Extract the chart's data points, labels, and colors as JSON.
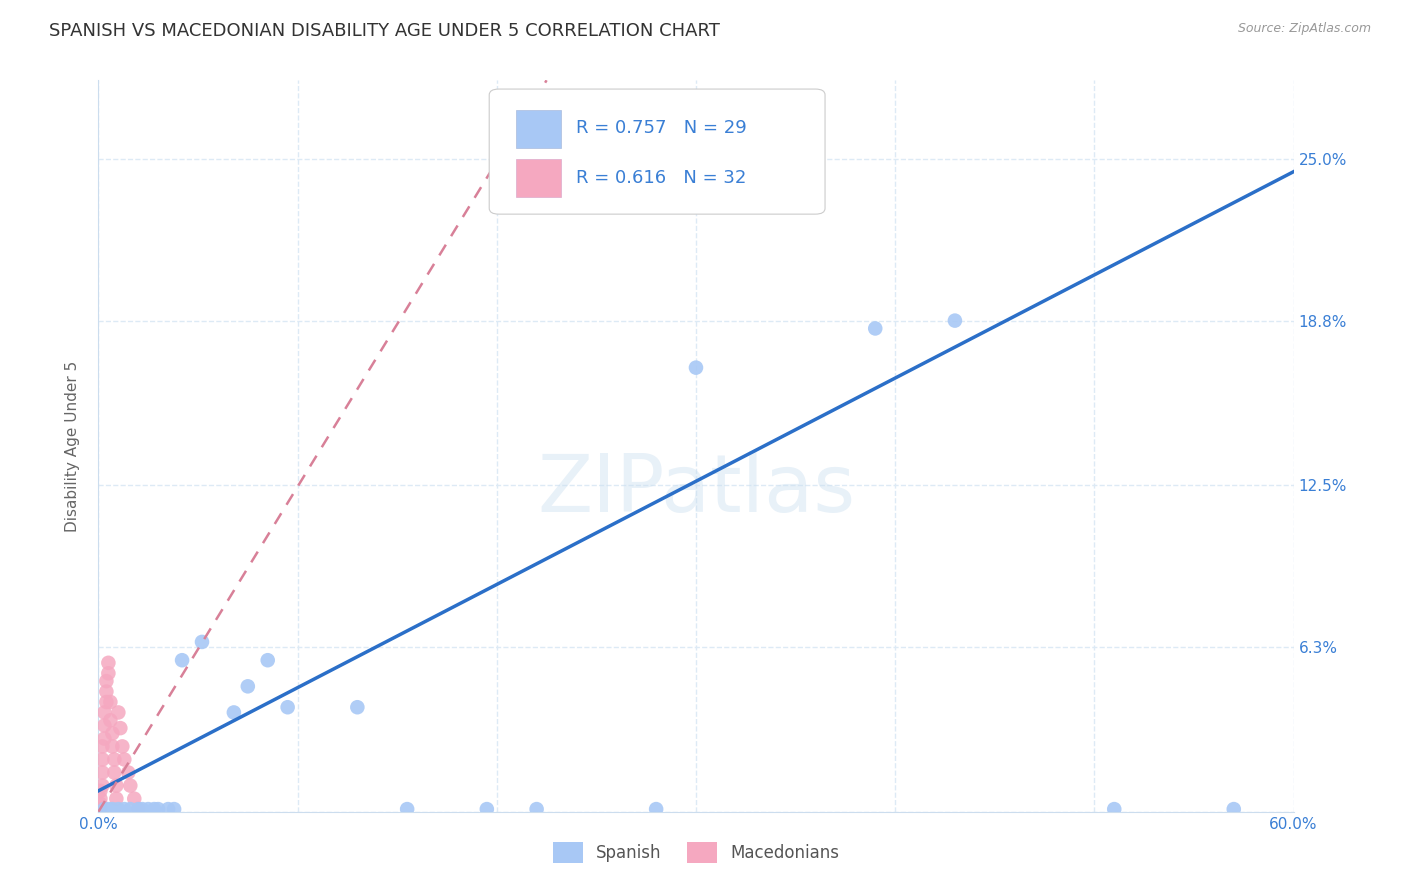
{
  "title": "SPANISH VS MACEDONIAN DISABILITY AGE UNDER 5 CORRELATION CHART",
  "source": "Source: ZipAtlas.com",
  "ylabel": "Disability Age Under 5",
  "watermark": "ZIPatlas",
  "xlim": [
    0.0,
    0.6
  ],
  "ylim": [
    0.0,
    0.28
  ],
  "xtick_positions": [
    0.0,
    0.1,
    0.2,
    0.3,
    0.4,
    0.5,
    0.6
  ],
  "xticklabels": [
    "0.0%",
    "",
    "",
    "",
    "",
    "",
    "60.0%"
  ],
  "ytick_positions": [
    0.0,
    0.063,
    0.125,
    0.188,
    0.25
  ],
  "ytick_labels": [
    "",
    "6.3%",
    "12.5%",
    "18.8%",
    "25.0%"
  ],
  "spanish_R": 0.757,
  "spanish_N": 29,
  "macedonian_R": 0.616,
  "macedonian_N": 32,
  "spanish_color": "#a8c8f5",
  "macedonian_color": "#f5a8c0",
  "spanish_line_color": "#2b6fc8",
  "macedonian_line_color": "#d88098",
  "legend_color": "#3a7fd5",
  "bg_color": "#ffffff",
  "grid_color": "#ddeaf5",
  "title_fontsize": 13,
  "axis_fontsize": 11,
  "tick_fontsize": 11,
  "marker_size": 110,
  "spanish_dots": [
    [
      0.003,
      0.001
    ],
    [
      0.005,
      0.001
    ],
    [
      0.007,
      0.001
    ],
    [
      0.01,
      0.001
    ],
    [
      0.013,
      0.001
    ],
    [
      0.016,
      0.001
    ],
    [
      0.02,
      0.001
    ],
    [
      0.022,
      0.001
    ],
    [
      0.025,
      0.001
    ],
    [
      0.028,
      0.001
    ],
    [
      0.03,
      0.001
    ],
    [
      0.035,
      0.001
    ],
    [
      0.038,
      0.001
    ],
    [
      0.042,
      0.058
    ],
    [
      0.052,
      0.065
    ],
    [
      0.068,
      0.038
    ],
    [
      0.075,
      0.048
    ],
    [
      0.085,
      0.058
    ],
    [
      0.095,
      0.04
    ],
    [
      0.13,
      0.04
    ],
    [
      0.155,
      0.001
    ],
    [
      0.195,
      0.001
    ],
    [
      0.22,
      0.001
    ],
    [
      0.28,
      0.001
    ],
    [
      0.3,
      0.17
    ],
    [
      0.39,
      0.185
    ],
    [
      0.43,
      0.188
    ],
    [
      0.51,
      0.001
    ],
    [
      0.57,
      0.001
    ]
  ],
  "macedonian_dots": [
    [
      0.001,
      0.001
    ],
    [
      0.001,
      0.003
    ],
    [
      0.001,
      0.005
    ],
    [
      0.001,
      0.008
    ],
    [
      0.002,
      0.01
    ],
    [
      0.002,
      0.015
    ],
    [
      0.002,
      0.02
    ],
    [
      0.002,
      0.025
    ],
    [
      0.003,
      0.028
    ],
    [
      0.003,
      0.033
    ],
    [
      0.003,
      0.038
    ],
    [
      0.004,
      0.042
    ],
    [
      0.004,
      0.046
    ],
    [
      0.004,
      0.05
    ],
    [
      0.005,
      0.053
    ],
    [
      0.005,
      0.057
    ],
    [
      0.006,
      0.042
    ],
    [
      0.006,
      0.035
    ],
    [
      0.007,
      0.03
    ],
    [
      0.007,
      0.025
    ],
    [
      0.008,
      0.02
    ],
    [
      0.008,
      0.015
    ],
    [
      0.009,
      0.01
    ],
    [
      0.009,
      0.005
    ],
    [
      0.01,
      0.038
    ],
    [
      0.011,
      0.032
    ],
    [
      0.012,
      0.025
    ],
    [
      0.013,
      0.02
    ],
    [
      0.015,
      0.015
    ],
    [
      0.016,
      0.01
    ],
    [
      0.018,
      0.005
    ],
    [
      0.02,
      0.001
    ]
  ],
  "spanish_line": [
    [
      0.0,
      0.008
    ],
    [
      0.6,
      0.245
    ]
  ],
  "macedonian_line": [
    [
      0.0,
      -0.01
    ],
    [
      0.25,
      0.285
    ]
  ]
}
